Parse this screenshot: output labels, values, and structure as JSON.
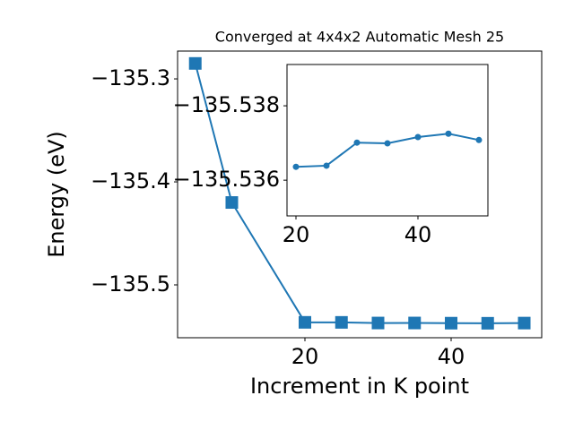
{
  "chart_data": [
    {
      "type": "line",
      "title": "Converged at 4x4x2 Automatic Mesh 25",
      "x_label": "Increment in K point",
      "y_label": "Energy (eV)",
      "x": [
        5,
        10,
        20,
        25,
        30,
        35,
        40,
        45,
        50
      ],
      "series": [
        {
          "color": "#1f77b4",
          "marker": "square",
          "values": [
            -135.285,
            -135.42,
            -135.53636,
            -135.53639,
            -135.53701,
            -135.53699,
            -135.53716,
            -135.53725,
            -135.53708
          ]
        }
      ],
      "xlim": [
        2.58,
        52.39
      ],
      "ylim": [
        -135.5513,
        -135.273
      ],
      "xticks": [
        20,
        40
      ],
      "yticks": [
        {
          "value": -135.3,
          "label": "−135.3"
        },
        {
          "value": -135.4,
          "label": "−135.4"
        },
        {
          "value": -135.5,
          "label": "−135.5"
        }
      ]
    },
    {
      "type": "line",
      "x": [
        20,
        25,
        30,
        35,
        40,
        45,
        50
      ],
      "series": [
        {
          "color": "#1f77b4",
          "marker": "circle",
          "values": [
            -135.53636,
            -135.53639,
            -135.53701,
            -135.53699,
            -135.53716,
            -135.53725,
            -135.53708
          ]
        }
      ],
      "xlim": [
        18.53,
        51.47
      ],
      "ylim": [
        -135.53504,
        -135.53911
      ],
      "xticks": [
        20,
        40
      ],
      "yticks": [
        {
          "value": -135.538,
          "label": "−135.538"
        },
        {
          "value": -135.536,
          "label": "−135.536"
        }
      ]
    }
  ]
}
